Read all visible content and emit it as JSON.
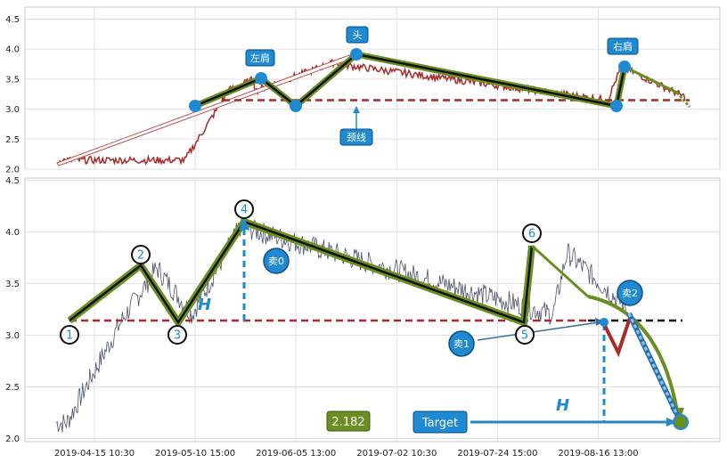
{
  "chart_data": [
    {
      "type": "line",
      "panel": "top",
      "title": "",
      "xlabel": "",
      "ylabel": "",
      "ylim": [
        2.0,
        4.7
      ],
      "yticks": [
        "2.0",
        "2.5",
        "3.0",
        "3.5",
        "4.0",
        "4.5"
      ],
      "grid": true,
      "neckline": 3.15,
      "pattern_points": [
        {
          "x": 0.08,
          "y": 3.15
        },
        {
          "x": 0.19,
          "y": 3.63
        },
        {
          "x": 0.24,
          "y": 3.15
        },
        {
          "x": 0.315,
          "y": 4.08
        },
        {
          "x": 0.765,
          "y": 3.15
        },
        {
          "x": 0.8,
          "y": 3.84
        },
        {
          "x": 0.88,
          "y": 3.12
        }
      ],
      "annotations": {
        "left_shoulder": "左肩",
        "head": "头",
        "right_shoulder": "右肩",
        "neckline": "颈线"
      },
      "colors": {
        "price": "#a82a2a",
        "pattern": "#6b8e23",
        "neckline": "#a82a2a",
        "marker": "#1f8ad2"
      }
    },
    {
      "type": "line",
      "panel": "bottom",
      "title": "",
      "xlabel": "",
      "ylabel": "",
      "ylim": [
        1.97,
        4.52
      ],
      "yticks": [
        "2.0",
        "2.5",
        "3.0",
        "3.5",
        "4.0",
        "4.5"
      ],
      "categories": [
        "2019-04-15 10:30",
        "2019-05-10 15:00",
        "2019-06-05 13:00",
        "2019-07-02 10:30",
        "2019-07-24 15:00",
        "2019-08-16 13:00"
      ],
      "grid": true,
      "neckline": 3.15,
      "pattern_points": [
        {
          "x": 0.04,
          "y": 3.15,
          "label": "1"
        },
        {
          "x": 0.155,
          "y": 3.68,
          "label": "2"
        },
        {
          "x": 0.205,
          "y": 3.15,
          "label": "3"
        },
        {
          "x": 0.305,
          "y": 4.08,
          "label": "4"
        },
        {
          "x": 0.715,
          "y": 3.15,
          "label": "5"
        },
        {
          "x": 0.73,
          "y": 3.85,
          "label": "6"
        }
      ],
      "sell_points": [
        {
          "label": "卖0",
          "x": 0.355,
          "y": 3.71
        },
        {
          "label": "卖1",
          "x": 0.625,
          "y": 2.95
        },
        {
          "label": "卖2",
          "x": 0.865,
          "y": 3.42
        }
      ],
      "height_label": "H",
      "target_label": "Target",
      "target_value": "2.182",
      "target_y": 2.18,
      "colors": {
        "price": "#4a5368",
        "pattern": "#6b8e23",
        "neckline": "#a82a2a",
        "marker": "#1f8ad2",
        "value_box": "#6b8e23"
      }
    }
  ]
}
